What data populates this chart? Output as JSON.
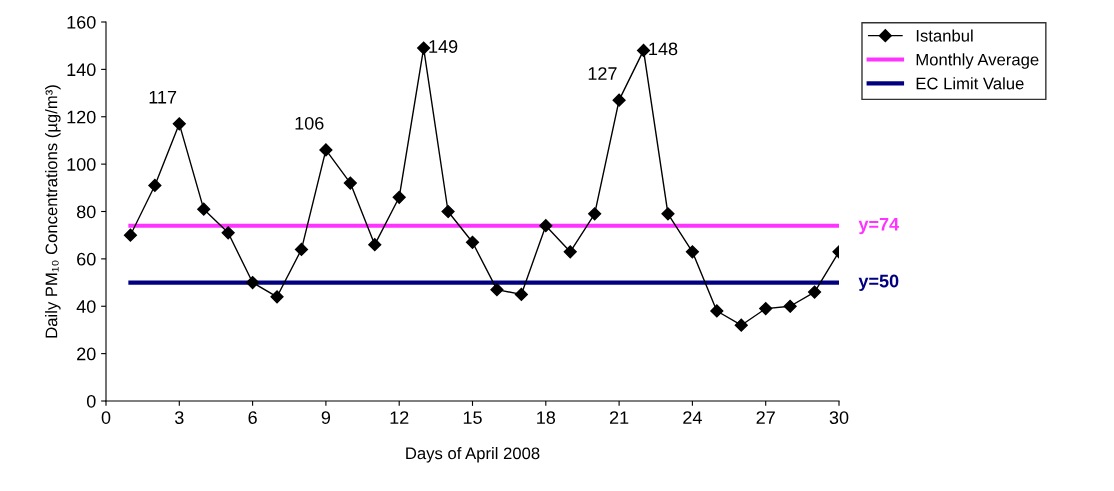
{
  "chart_data": {
    "type": "line",
    "xlabel": "Days of April 2008",
    "ylabel": "Daily PM₁₀ Concentrations (µg/m³)",
    "xlim": [
      0,
      30
    ],
    "xticks": [
      0,
      3,
      6,
      9,
      12,
      15,
      18,
      21,
      24,
      27,
      30
    ],
    "ylim": [
      0,
      160
    ],
    "yticks": [
      0,
      20,
      40,
      60,
      80,
      100,
      120,
      140,
      160
    ],
    "grid": false,
    "legend": "top right",
    "series": [
      {
        "name": "Istanbul",
        "color": "#000000",
        "marker": "diamond",
        "x": [
          1,
          2,
          3,
          4,
          5,
          6,
          7,
          8,
          9,
          10,
          11,
          12,
          13,
          14,
          15,
          16,
          17,
          18,
          19,
          20,
          21,
          22,
          23,
          24,
          25,
          26,
          27,
          28,
          29,
          30
        ],
        "values": [
          70,
          91,
          117,
          81,
          71,
          50,
          44,
          64,
          106,
          92,
          66,
          86,
          149,
          80,
          67,
          47,
          45,
          74,
          63,
          79,
          127,
          148,
          79,
          63,
          38,
          32,
          39,
          40,
          46,
          63
        ],
        "value_labels": [
          null,
          null,
          "117",
          null,
          null,
          null,
          null,
          null,
          "106",
          null,
          null,
          null,
          "149",
          null,
          null,
          null,
          null,
          null,
          null,
          null,
          "127",
          "148",
          null,
          null,
          null,
          null,
          null,
          null,
          null,
          null
        ]
      },
      {
        "name": "Monthly Average",
        "color": "#ff33ff",
        "marker": "none",
        "x": [
          1,
          30
        ],
        "values": [
          74,
          74
        ]
      },
      {
        "name": "EC Limit Value",
        "color": "#000080",
        "marker": "none",
        "x": [
          1,
          30
        ],
        "values": [
          50,
          50
        ]
      }
    ],
    "annotations": [
      {
        "text": "y=74",
        "x": 30,
        "y": 74
      },
      {
        "text": "y=50",
        "x": 30,
        "y": 50
      }
    ]
  }
}
